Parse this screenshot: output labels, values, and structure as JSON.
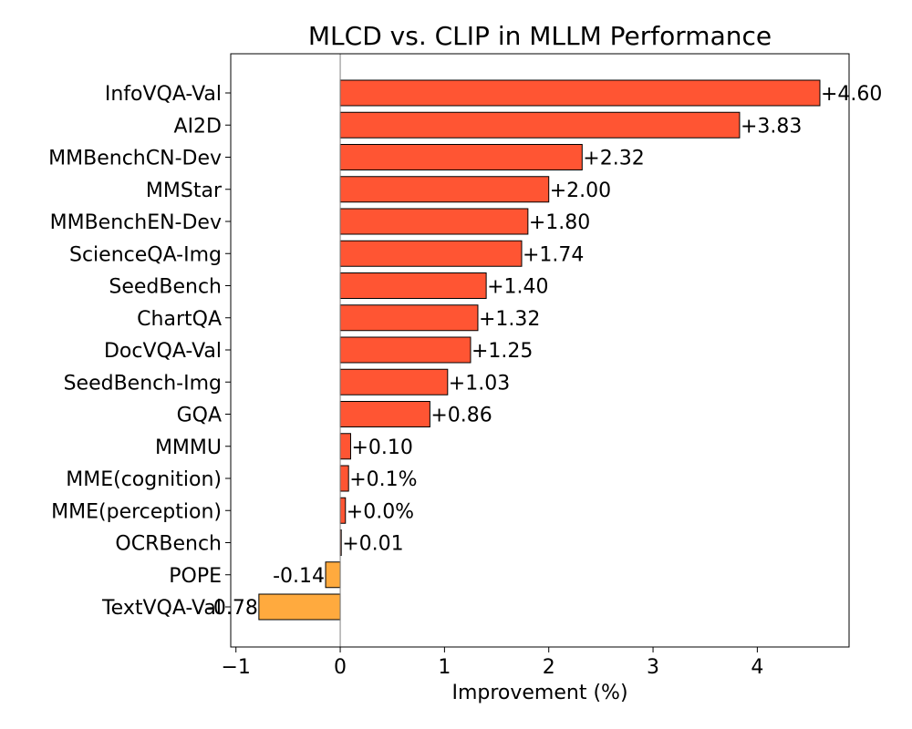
{
  "chart_data": {
    "type": "bar",
    "orientation": "horizontal",
    "title": "MLCD vs. CLIP in MLLM Performance",
    "xlabel": "Improvement (%)",
    "ylabel": "",
    "xlim": [
      -1.05,
      4.88
    ],
    "xticks": [
      -1,
      0,
      1,
      2,
      3,
      4
    ],
    "xtick_labels": [
      "−1",
      "0",
      "1",
      "2",
      "3",
      "4"
    ],
    "grid": false,
    "zero_line": true,
    "colors": {
      "positive": "#FF5533",
      "negative": "#FFAA3E",
      "edge": "#000000",
      "zero_line": "#808080"
    },
    "categories": [
      "InfoVQA-Val",
      "AI2D",
      "MMBenchCN-Dev",
      "MMStar",
      "MMBenchEN-Dev",
      "ScienceQA-Img",
      "SeedBench",
      "ChartQA",
      "DocVQA-Val",
      "SeedBench-Img",
      "GQA",
      "MMMU",
      "MME(cognition)",
      "MME(perception)",
      "OCRBench",
      "POPE",
      "TextVQA-Val"
    ],
    "values": [
      4.6,
      3.83,
      2.32,
      2.0,
      1.8,
      1.74,
      1.4,
      1.32,
      1.25,
      1.03,
      0.86,
      0.1,
      0.08,
      0.05,
      0.01,
      -0.14,
      -0.78
    ],
    "data_labels": [
      "+4.60",
      "+3.83",
      "+2.32",
      "+2.00",
      "+1.80",
      "+1.74",
      "+1.40",
      "+1.32",
      "+1.25",
      "+1.03",
      "+0.86",
      "+0.10",
      "+0.1%",
      "+0.0%",
      "+0.01",
      "-0.14",
      "-0.78"
    ]
  }
}
